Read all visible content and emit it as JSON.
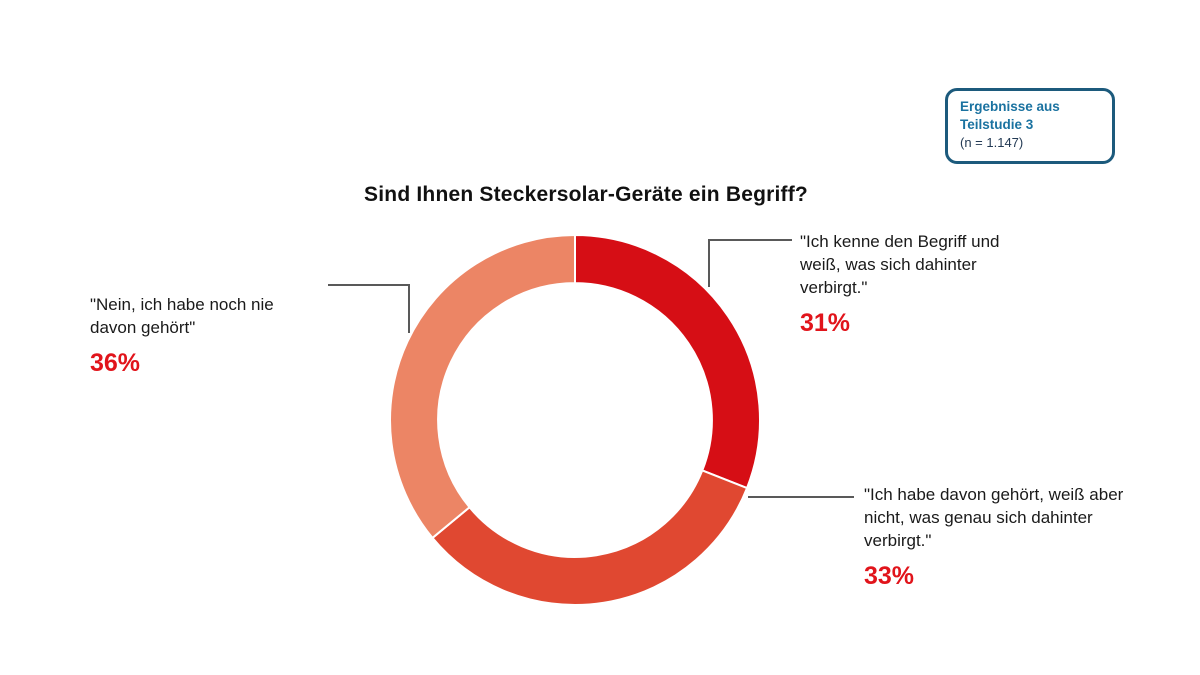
{
  "badge": {
    "line1": "Ergebnisse aus",
    "line2": "Teilstudie 3",
    "line3": "(n = 1.147)"
  },
  "chart_data": {
    "type": "pie",
    "subtype": "donut",
    "title": "Sind Ihnen Steckersolar-Geräte ein Begriff?",
    "start_angle_deg": 0,
    "direction": "clockwise",
    "inner_radius_ratio": 0.74,
    "segments": [
      {
        "label": "\"Ich kenne den Begriff und weiß, was sich dahinter verbirgt.\"",
        "value": 31,
        "pct_label": "31%",
        "color": "#d60e15"
      },
      {
        "label": "\"Ich habe davon gehört, weiß aber nicht, was genau sich dahinter verbirgt.\"",
        "value": 33,
        "pct_label": "33%",
        "color": "#e04831"
      },
      {
        "label": "\"Nein, ich habe noch nie davon gehört\"",
        "value": 36,
        "pct_label": "36%",
        "color": "#ec8565"
      }
    ],
    "legend_position": "callouts"
  },
  "colors": {
    "percent": "#e1141b",
    "leader_line": "#595959",
    "badge_border": "#1c5a7c",
    "badge_text": "#1a72a0",
    "badge_note": "#233a54",
    "title_text": "#111111",
    "background": "#ffffff"
  }
}
